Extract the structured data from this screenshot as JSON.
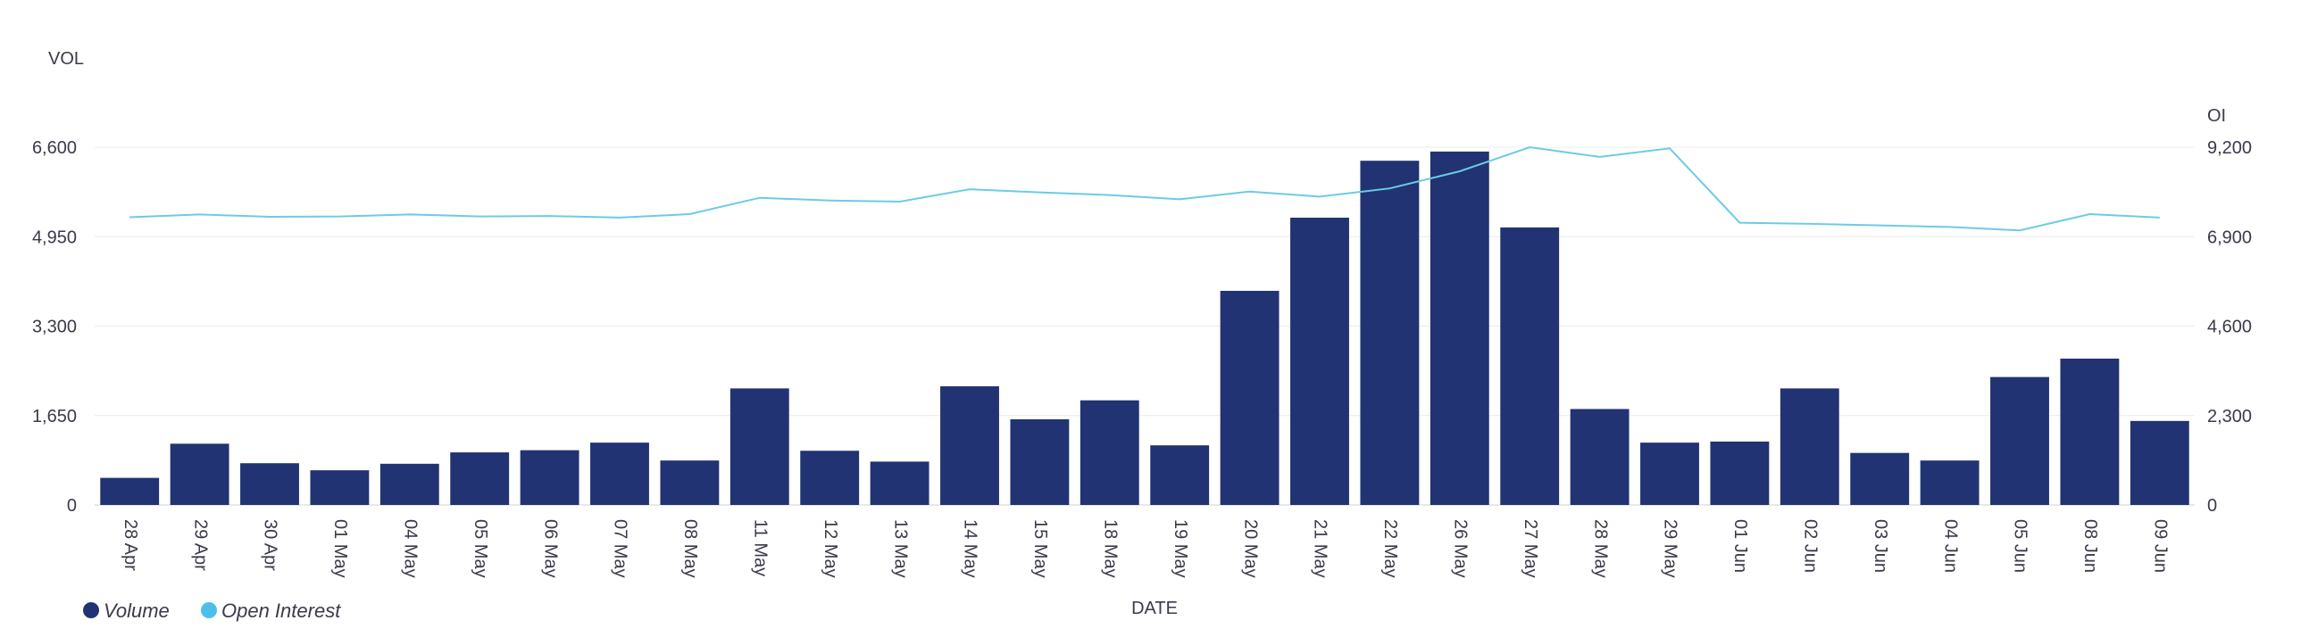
{
  "chart_data": {
    "type": "bar",
    "xlabel": "DATE",
    "ylabel_left": "VOL",
    "ylabel_right": "OI",
    "categories": [
      "28 Apr",
      "29 Apr",
      "30 Apr",
      "01 May",
      "04 May",
      "05 May",
      "06 May",
      "07 May",
      "08 May",
      "11 May",
      "12 May",
      "13 May",
      "14 May",
      "15 May",
      "18 May",
      "19 May",
      "20 May",
      "21 May",
      "22 May",
      "26 May",
      "27 May",
      "28 May",
      "29 May",
      "01 Jun",
      "02 Jun",
      "03 Jun",
      "04 Jun",
      "05 Jun",
      "08 Jun",
      "09 Jun"
    ],
    "left_axis": {
      "ylim": [
        0,
        6600
      ],
      "ticks": [
        0,
        1650,
        3300,
        4950,
        6600
      ],
      "tick_labels": [
        "0",
        "1,650",
        "3,300",
        "4,950",
        "6,600"
      ]
    },
    "right_axis": {
      "ylim": [
        0,
        9200
      ],
      "ticks": [
        0,
        2300,
        4600,
        6900,
        9200
      ],
      "tick_labels": [
        "0",
        "2,300",
        "4,600",
        "6,900",
        "9,200"
      ]
    },
    "grid": true,
    "legend_position": "bottom-left",
    "series": [
      {
        "name": "Volume",
        "kind": "bar",
        "axis": "left",
        "color": "#213373",
        "values": [
          500,
          1130,
          770,
          640,
          760,
          970,
          1010,
          1150,
          820,
          2150,
          1000,
          800,
          2190,
          1580,
          1930,
          1100,
          3950,
          5300,
          6350,
          6520,
          5120,
          1770,
          1150,
          1170,
          2150,
          960,
          820,
          2360,
          2700,
          1550
        ]
      },
      {
        "name": "Open Interest",
        "kind": "line",
        "axis": "right",
        "color": "#6ccbe6",
        "legend_color": "#4bbfe8",
        "values": [
          7400,
          7470,
          7410,
          7420,
          7470,
          7420,
          7430,
          7390,
          7480,
          7900,
          7830,
          7800,
          8120,
          8040,
          7970,
          7860,
          8060,
          7930,
          8140,
          8580,
          9200,
          8950,
          9170,
          7260,
          7230,
          7190,
          7150,
          7060,
          7480,
          7390
        ]
      }
    ]
  }
}
